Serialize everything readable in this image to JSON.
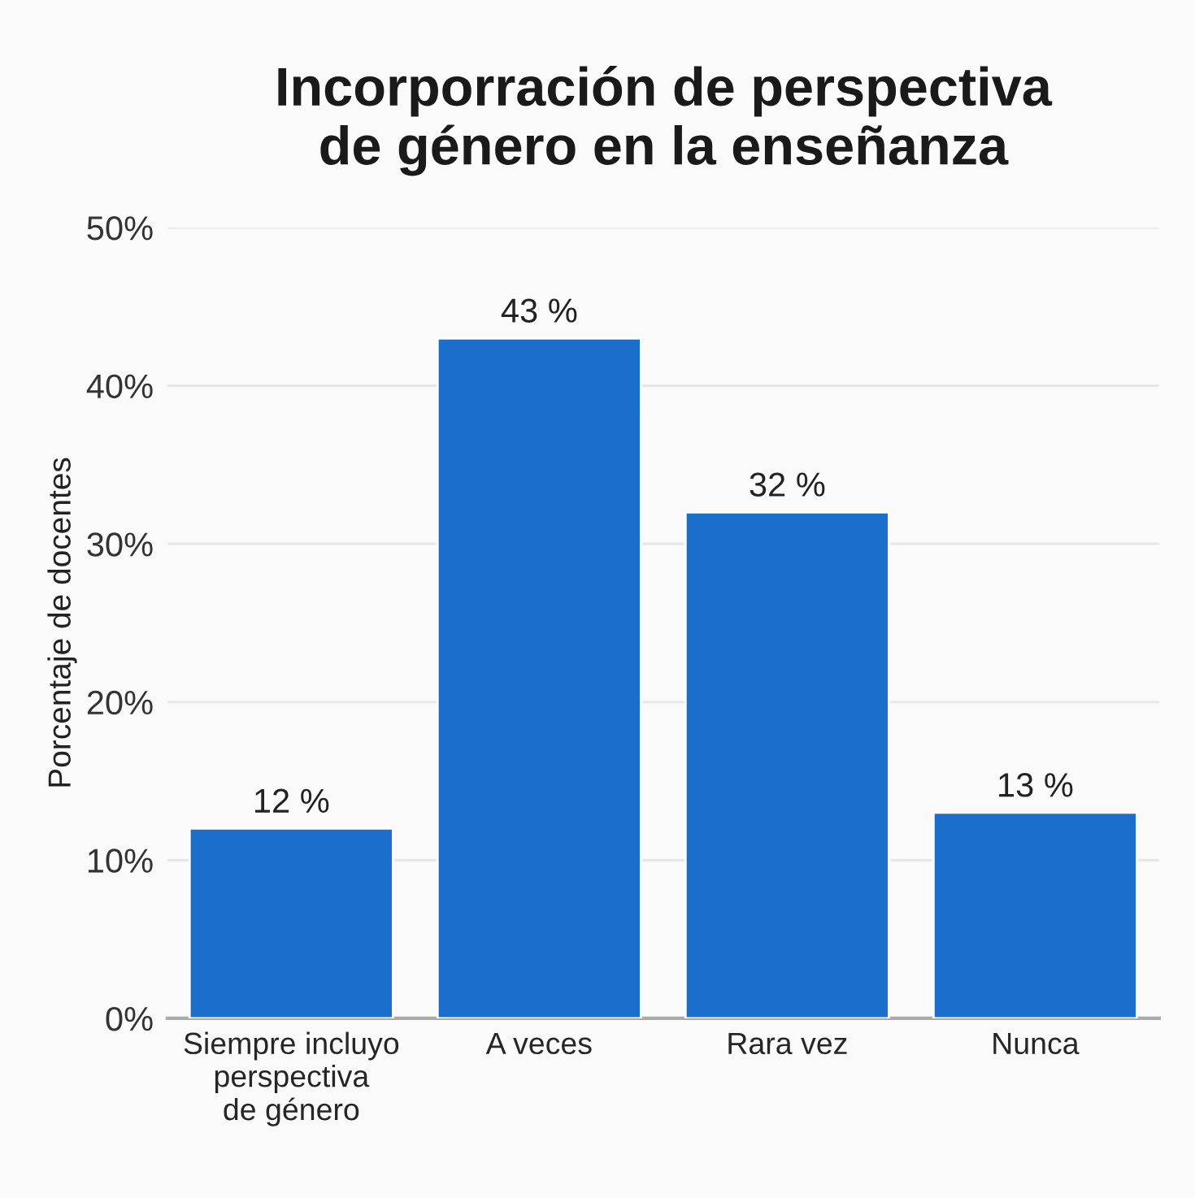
{
  "chart_data": {
    "type": "bar",
    "title": "Incorporración de perspectiva\nde género en la enseñanza",
    "ylabel": "Porcentaje de docentes",
    "categories": [
      "Siempre incluyo\nperspectiva\nde género",
      "A veces",
      "Rara vez",
      "Nunca"
    ],
    "values": [
      12,
      43,
      32,
      13
    ],
    "value_labels": [
      "12 %",
      "43 %",
      "32 %",
      "13 %"
    ],
    "color": "#1a6fca",
    "ylim": [
      0,
      50
    ],
    "yticks": [
      {
        "value": 0,
        "label": "0%"
      },
      {
        "value": 10,
        "label": "10%"
      },
      {
        "value": 20,
        "label": "20%"
      },
      {
        "value": 30,
        "label": "30%"
      },
      {
        "value": 40,
        "label": "40%"
      },
      {
        "value": 50,
        "label": "50%"
      }
    ],
    "grid": "y",
    "legend": false
  }
}
